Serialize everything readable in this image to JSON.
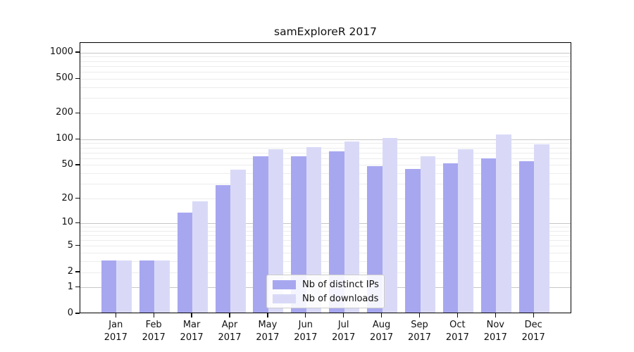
{
  "chart_data": {
    "type": "bar",
    "title": "samExploreR 2017",
    "categories": [
      "Jan",
      "Feb",
      "Mar",
      "Apr",
      "May",
      "Jun",
      "Jul",
      "Aug",
      "Sep",
      "Oct",
      "Nov",
      "Dec"
    ],
    "category_year": "2017",
    "series": [
      {
        "name": "Nb of distinct IPs",
        "key": "distinct-ips",
        "color": "#a7a7f0",
        "values": [
          3,
          3,
          13,
          28,
          62,
          61,
          70,
          47,
          44,
          51,
          58,
          54
        ]
      },
      {
        "name": "Nb of downloads",
        "key": "downloads",
        "color": "#d9d9f7",
        "values": [
          3,
          3,
          18,
          43,
          75,
          78,
          91,
          100,
          62,
          75,
          110,
          85
        ]
      }
    ],
    "y_axis": {
      "scale": "log1p",
      "min": 0,
      "max": 1300,
      "ticks": [
        {
          "value": 1000,
          "label": "1000",
          "major": true
        },
        {
          "value": 500,
          "label": "500",
          "major": false
        },
        {
          "value": 200,
          "label": "200",
          "major": false
        },
        {
          "value": 100,
          "label": "100",
          "major": true
        },
        {
          "value": 50,
          "label": "50",
          "major": false
        },
        {
          "value": 20,
          "label": "20",
          "major": false
        },
        {
          "value": 10,
          "label": "10",
          "major": true
        },
        {
          "value": 5,
          "label": "5",
          "major": false
        },
        {
          "value": 2,
          "label": "2",
          "major": false
        },
        {
          "value": 1,
          "label": "1",
          "major": true
        },
        {
          "value": 0,
          "label": "0",
          "major": false
        }
      ],
      "minor_gridlines": [
        3,
        4,
        6,
        7,
        8,
        9,
        30,
        40,
        60,
        70,
        80,
        90,
        300,
        400,
        600,
        700,
        800,
        900
      ]
    },
    "legend": {
      "position": "lower center",
      "entries": [
        "Nb of distinct IPs",
        "Nb of downloads"
      ]
    },
    "colors": {
      "major_grid": "#c6c6c6",
      "minor_grid": "#ececec",
      "frame": "#000000",
      "background": "#ffffff"
    }
  }
}
